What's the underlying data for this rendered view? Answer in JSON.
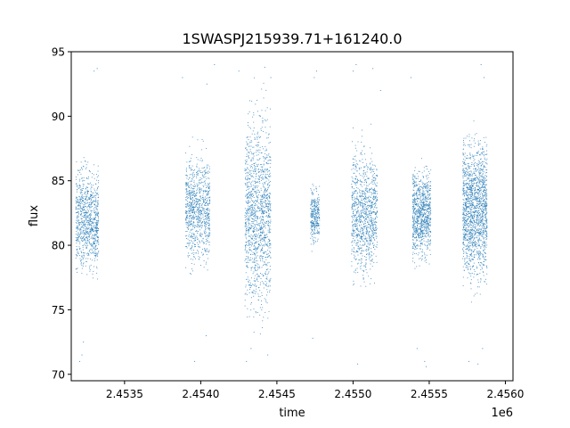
{
  "chart_data": {
    "type": "scatter",
    "title": "1SWASPJ215939.71+161240.0",
    "xlabel": "time",
    "ylabel": "flux",
    "x_offset_label": "1e6",
    "xlim": [
      2453150,
      2456050
    ],
    "ylim": [
      69.5,
      95.0
    ],
    "x_ticks": [
      2453500,
      2454000,
      2454500,
      2455000,
      2455500,
      2456000
    ],
    "x_tick_labels": [
      "2.4535",
      "2.4540",
      "2.4545",
      "2.4550",
      "2.4555",
      "2.4560"
    ],
    "y_ticks": [
      70,
      75,
      80,
      85,
      90,
      95
    ],
    "y_tick_labels": [
      "70",
      "75",
      "80",
      "85",
      "90",
      "95"
    ],
    "grid": false,
    "marker_color": "#1f77b4",
    "series": [
      {
        "clusters": [
          {
            "x_range": [
              2453180,
              2453330
            ],
            "y_center": 82.0,
            "y_spread": 3.6,
            "n": 900
          },
          {
            "x_range": [
              2453900,
              2454060
            ],
            "y_center": 82.8,
            "y_spread": 3.8,
            "n": 900
          },
          {
            "x_range": [
              2454290,
              2454460
            ],
            "y_center": 82.5,
            "y_spread": 7.0,
            "n": 1300
          },
          {
            "x_range": [
              2454720,
              2454780
            ],
            "y_center": 82.3,
            "y_spread": 2.0,
            "n": 300
          },
          {
            "x_range": [
              2454990,
              2455160
            ],
            "y_center": 82.5,
            "y_spread": 4.5,
            "n": 1000
          },
          {
            "x_range": [
              2455390,
              2455510
            ],
            "y_center": 82.4,
            "y_spread": 3.2,
            "n": 900
          },
          {
            "x_range": [
              2455720,
              2455880
            ],
            "y_center": 82.8,
            "y_spread": 5.0,
            "n": 1600
          }
        ],
        "outliers": [
          [
            2453220,
            71.5
          ],
          [
            2453230,
            72.5
          ],
          [
            2453205,
            71.0
          ],
          [
            2453300,
            93.5
          ],
          [
            2453320,
            93.7
          ],
          [
            2453880,
            93.0
          ],
          [
            2453960,
            71.0
          ],
          [
            2454035,
            73.0
          ],
          [
            2454090,
            94.0
          ],
          [
            2454040,
            92.5
          ],
          [
            2454300,
            71.0
          ],
          [
            2454330,
            72.0
          ],
          [
            2454440,
            71.5
          ],
          [
            2454250,
            93.5
          ],
          [
            2454420,
            93.8
          ],
          [
            2454460,
            93.0
          ],
          [
            2454735,
            72.8
          ],
          [
            2454745,
            93.0
          ],
          [
            2454760,
            93.5
          ],
          [
            2455030,
            70.8
          ],
          [
            2455000,
            93.5
          ],
          [
            2455020,
            94.0
          ],
          [
            2455130,
            93.7
          ],
          [
            2455180,
            92.0
          ],
          [
            2455420,
            72.0
          ],
          [
            2455470,
            71.0
          ],
          [
            2455480,
            70.6
          ],
          [
            2455380,
            93.0
          ],
          [
            2455760,
            71.0
          ],
          [
            2455820,
            70.8
          ],
          [
            2455850,
            72.0
          ],
          [
            2455840,
            94.0
          ],
          [
            2455860,
            93.0
          ]
        ]
      }
    ]
  }
}
